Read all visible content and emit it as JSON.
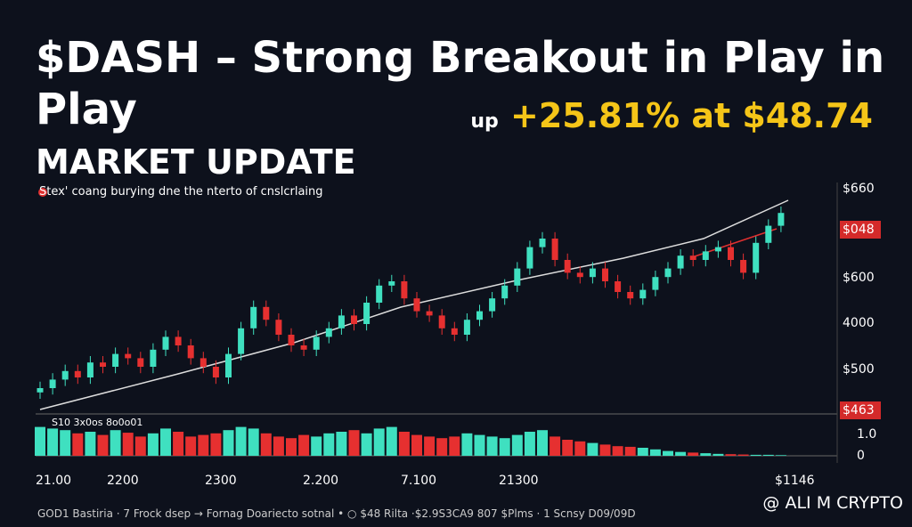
{
  "header": {
    "title": "$DASH – Strong Breakout in Play in Play",
    "change_prefix": "up",
    "change_text": "+25.81% at $48.74",
    "section": "MARKET UPDATE",
    "subtitle": "Stex' coang burying dne the nterto of cnslcrlaing"
  },
  "chart": {
    "ylim": [
      0,
      100
    ],
    "vlim": [
      0,
      100
    ],
    "open": [
      8,
      10,
      14,
      18,
      15,
      22,
      20,
      26,
      24,
      20,
      28,
      34,
      30,
      24,
      20,
      15,
      26,
      38,
      48,
      42,
      35,
      30,
      28,
      34,
      38,
      44,
      40,
      50,
      58,
      60,
      52,
      46,
      44,
      38,
      35,
      42,
      46,
      52,
      58,
      66,
      76,
      80,
      70,
      64,
      62,
      66,
      60,
      55,
      52,
      56,
      62,
      66,
      72,
      70,
      74,
      76,
      70,
      64,
      78,
      86
    ],
    "close": [
      10,
      14,
      18,
      15,
      22,
      20,
      26,
      24,
      20,
      28,
      34,
      30,
      24,
      20,
      15,
      26,
      38,
      48,
      42,
      35,
      30,
      28,
      34,
      38,
      44,
      40,
      50,
      58,
      60,
      52,
      46,
      44,
      38,
      35,
      42,
      46,
      52,
      58,
      66,
      76,
      80,
      70,
      64,
      62,
      66,
      60,
      55,
      52,
      56,
      62,
      66,
      72,
      70,
      74,
      76,
      70,
      64,
      78,
      86,
      92
    ],
    "high": [
      13,
      17,
      21,
      21,
      25,
      25,
      29,
      29,
      27,
      31,
      37,
      37,
      33,
      27,
      23,
      29,
      41,
      51,
      51,
      45,
      38,
      33,
      37,
      41,
      47,
      47,
      53,
      61,
      63,
      63,
      55,
      49,
      47,
      41,
      45,
      49,
      55,
      61,
      69,
      79,
      83,
      83,
      73,
      67,
      69,
      69,
      63,
      58,
      59,
      65,
      69,
      75,
      75,
      77,
      79,
      79,
      73,
      81,
      89,
      95
    ],
    "low": [
      5,
      7,
      11,
      12,
      12,
      17,
      17,
      21,
      17,
      17,
      25,
      27,
      21,
      17,
      12,
      12,
      23,
      35,
      39,
      32,
      27,
      25,
      25,
      31,
      35,
      37,
      37,
      47,
      55,
      49,
      43,
      41,
      35,
      32,
      32,
      39,
      43,
      49,
      55,
      63,
      73,
      67,
      61,
      59,
      59,
      57,
      52,
      49,
      49,
      53,
      59,
      63,
      67,
      67,
      71,
      67,
      61,
      61,
      75,
      83
    ],
    "volume": [
      90,
      85,
      80,
      70,
      75,
      65,
      80,
      72,
      60,
      70,
      85,
      75,
      60,
      65,
      70,
      80,
      90,
      85,
      70,
      60,
      55,
      65,
      60,
      70,
      75,
      80,
      70,
      85,
      90,
      75,
      65,
      60,
      55,
      60,
      70,
      65,
      60,
      55,
      65,
      75,
      80,
      60,
      50,
      45,
      40,
      35,
      30,
      28,
      25,
      20,
      15,
      12,
      10,
      8,
      6,
      5,
      4,
      3,
      3,
      2
    ],
    "volume_label": "S10 3x0os 8o0o01",
    "price_labels": [
      "$660",
      "$048",
      "$600",
      "4000",
      "$500",
      "$463"
    ],
    "volume_labels": [
      "1.0",
      "0"
    ],
    "time_labels": [
      "21.00",
      "2200",
      "2300",
      "2.200",
      "7.100",
      "21300",
      "$1146"
    ]
  },
  "footer": {
    "ticker": "GOD1 Bastiria · 7 Frock dsep → Fornag Doariecto sotnal • ○ $48 Rilta ·$2.9S3CA9 807 $Plms · 1 Scnsy D09/09D",
    "watermark": "@ ALI M CRYPTO"
  }
}
